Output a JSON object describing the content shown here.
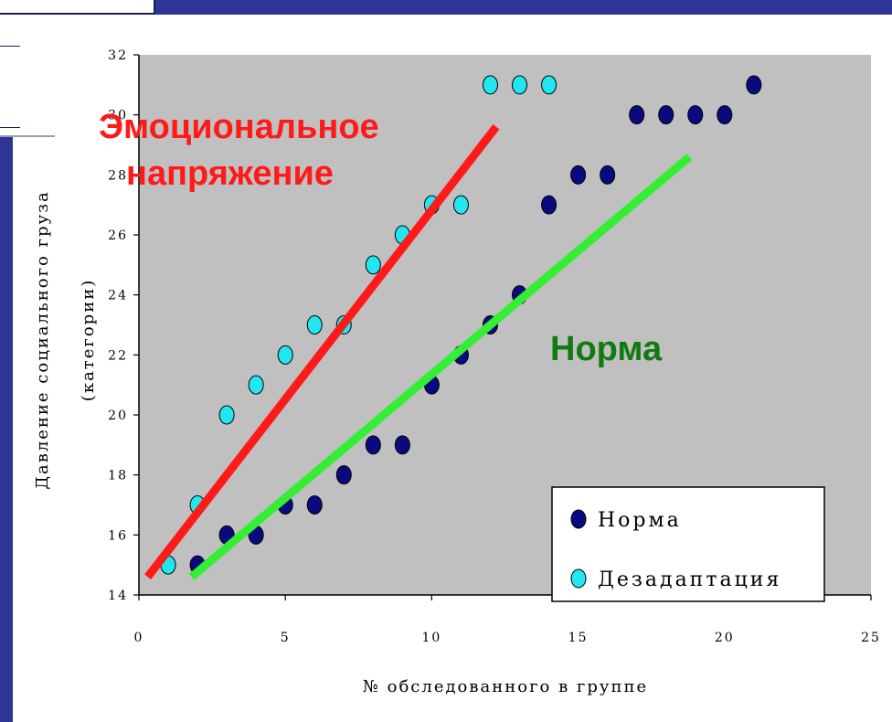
{
  "chart_data": {
    "type": "scatter",
    "xlabel": "№ обследованного в группе",
    "ylabel": [
      "Давление социального груза",
      "(категории)"
    ],
    "xlim": [
      0,
      25
    ],
    "ylim": [
      14,
      32
    ],
    "x_ticks": [
      0,
      5,
      10,
      15,
      20,
      25
    ],
    "y_ticks": [
      14,
      16,
      18,
      20,
      22,
      24,
      26,
      28,
      30,
      32
    ],
    "grid": false,
    "legend_position": "bottom-right",
    "series": [
      {
        "name": "Норма",
        "color": "#0a0a80",
        "x": [
          2,
          3,
          4,
          5,
          6,
          7,
          8,
          9,
          10,
          11,
          12,
          13,
          14,
          15,
          16,
          17,
          18,
          19,
          20,
          21
        ],
        "y": [
          15,
          16,
          16,
          17,
          17,
          18,
          19,
          19,
          21,
          22,
          23,
          24,
          27,
          28,
          28,
          30,
          30,
          30,
          30,
          31
        ]
      },
      {
        "name": "Дезадаптация",
        "color": "#22e6f0",
        "x": [
          1,
          2,
          3,
          4,
          5,
          6,
          7,
          8,
          9,
          10,
          11,
          12,
          13,
          14
        ],
        "y": [
          15,
          17,
          20,
          21,
          22,
          23,
          23,
          25,
          26,
          27,
          27,
          31,
          31,
          31
        ]
      }
    ],
    "trend_lines": [
      {
        "color": "#ff1a1a",
        "from": [
          0.3,
          14.6
        ],
        "to": [
          12.2,
          29.6
        ]
      },
      {
        "color": "#33ee33",
        "from": [
          1.8,
          14.6
        ],
        "to": [
          18.8,
          28.6
        ]
      }
    ],
    "annotations": [
      {
        "lines": [
          "Эмоциональное",
          "напряжение"
        ],
        "color": "#ff1a1a"
      },
      {
        "lines": [
          "Норма"
        ],
        "color": "#117a11"
      }
    ],
    "plot_background": "#c0c0c0"
  }
}
